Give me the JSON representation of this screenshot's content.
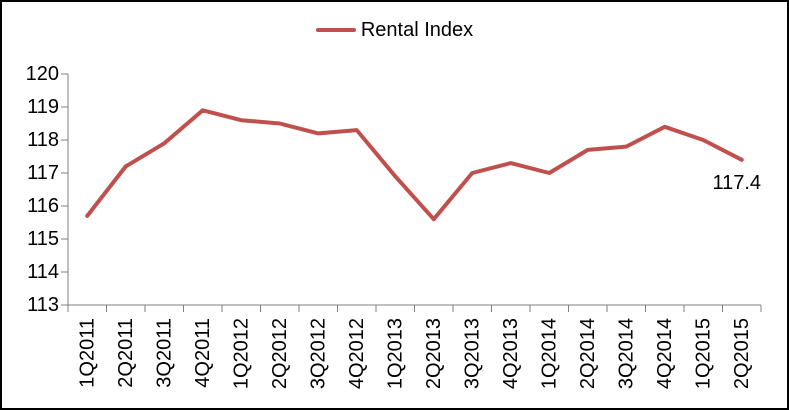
{
  "chart_data": {
    "type": "line",
    "title": "",
    "xlabel": "",
    "ylabel": "",
    "grid": false,
    "legend": {
      "position": "top-center",
      "entries": [
        {
          "label": "Rental Index",
          "color": "#C0504D"
        }
      ]
    },
    "categories": [
      "1Q2011",
      "2Q2011",
      "3Q2011",
      "4Q2011",
      "1Q2012",
      "2Q2012",
      "3Q2012",
      "4Q2012",
      "1Q2013",
      "2Q2013",
      "3Q2013",
      "4Q2013",
      "1Q2014",
      "2Q2014",
      "3Q2014",
      "4Q2014",
      "1Q2015",
      "2Q2015"
    ],
    "series": [
      {
        "name": "Rental Index",
        "color": "#C0504D",
        "values": [
          115.7,
          117.2,
          117.9,
          118.9,
          118.6,
          118.5,
          118.2,
          118.3,
          116.9,
          115.6,
          117.0,
          117.3,
          117.0,
          117.7,
          117.8,
          118.4,
          118.0,
          117.4
        ]
      }
    ],
    "y_axis": {
      "min": 113,
      "max": 120,
      "step": 1,
      "tick_labels": [
        "113",
        "114",
        "115",
        "116",
        "117",
        "118",
        "119",
        "120"
      ]
    },
    "x_axis": {
      "tick_label_rotation": "vertical-bottom-to-top"
    },
    "annotations": [
      {
        "text": "117.4",
        "series": "Rental Index",
        "category": "2Q2015",
        "category_index": 17,
        "position": "below-left-of-point"
      }
    ],
    "style": {
      "axis_color": "#808080",
      "text_color": "#000000",
      "background": "#FFFFFF",
      "border_color": "#000000",
      "line_width": 4
    }
  }
}
